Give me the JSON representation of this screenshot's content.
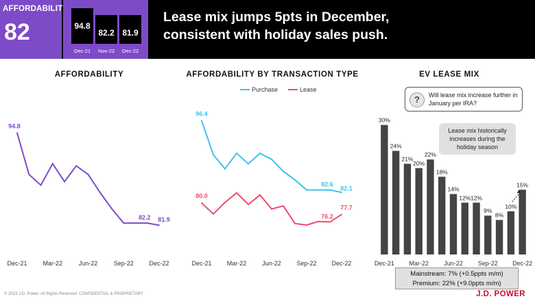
{
  "header": {
    "kpi_label": "AFFORDABILITY",
    "kpi_value": "82",
    "mini": [
      {
        "value": "94.8",
        "label": "Dec-21"
      },
      {
        "value": "82.2",
        "label": "Nov-22"
      },
      {
        "value": "81.9",
        "label": "Dec-22"
      }
    ],
    "headline_line1": "Lease mix jumps 5pts in December,",
    "headline_line2": "consistent with holiday sales push."
  },
  "colors": {
    "purple": "#7d4bc8",
    "purchase": "#3ec1ec",
    "lease": "#ef4b6c",
    "bar": "#444444",
    "brand_red": "#c8102e"
  },
  "chart_data": [
    {
      "type": "line",
      "title": "AFFORDABILITY",
      "x": [
        "Dec-21",
        "Jan-22",
        "Feb-22",
        "Mar-22",
        "Apr-22",
        "May-22",
        "Jun-22",
        "Jul-22",
        "Aug-22",
        "Sep-22",
        "Oct-22",
        "Nov-22",
        "Dec-22"
      ],
      "tick_labels": [
        "Dec-21",
        "Mar-22",
        "Jun-22",
        "Sep-22",
        "Dec-22"
      ],
      "series": [
        {
          "values": [
            94.8,
            89.0,
            87.5,
            90.5,
            88.0,
            90.2,
            89.0,
            86.5,
            84.2,
            82.2,
            82.2,
            82.2,
            81.9
          ]
        }
      ],
      "data_labels": [
        {
          "index": 0,
          "text": "94.8"
        },
        {
          "index": 11,
          "text": "82.2"
        },
        {
          "index": 12,
          "text": "81.9"
        }
      ],
      "ylim": [
        78,
        100
      ]
    },
    {
      "type": "line",
      "title": "AFFORDABILITY BY TRANSACTION TYPE",
      "legend_position": "top",
      "x": [
        "Dec-21",
        "Jan-22",
        "Feb-22",
        "Mar-22",
        "Apr-22",
        "May-22",
        "Jun-22",
        "Jul-22",
        "Aug-22",
        "Sep-22",
        "Oct-22",
        "Nov-22",
        "Dec-22"
      ],
      "tick_labels": [
        "Dec-21",
        "Mar-22",
        "Jun-22",
        "Sep-22",
        "Dec-22"
      ],
      "series": [
        {
          "name": "Purchase",
          "values": [
            96.4,
            89.6,
            86.8,
            89.9,
            87.8,
            89.9,
            88.7,
            86.3,
            84.6,
            82.6,
            82.6,
            82.6,
            82.1
          ]
        },
        {
          "name": "Lease",
          "values": [
            80.0,
            77.8,
            80.1,
            82.0,
            79.7,
            81.6,
            78.8,
            79.4,
            75.9,
            75.6,
            76.3,
            76.2,
            77.7
          ]
        }
      ],
      "data_labels": [
        {
          "series": 0,
          "index": 0,
          "text": "96.4"
        },
        {
          "series": 0,
          "index": 11,
          "text": "82.6"
        },
        {
          "series": 0,
          "index": 12,
          "text": "82.1"
        },
        {
          "series": 1,
          "index": 0,
          "text": "80.0"
        },
        {
          "series": 1,
          "index": 11,
          "text": "76.2"
        },
        {
          "series": 1,
          "index": 12,
          "text": "77.7"
        }
      ],
      "ylim": [
        70,
        100
      ]
    },
    {
      "type": "bar",
      "title": "EV LEASE MIX",
      "categories": [
        "Dec-21",
        "Jan-22",
        "Feb-22",
        "Mar-22",
        "Apr-22",
        "May-22",
        "Jun-22",
        "Jul-22",
        "Aug-22",
        "Sep-22",
        "Oct-22",
        "Nov-22",
        "Dec-22"
      ],
      "tick_labels": [
        "Dec-21",
        "Mar-22",
        "Jun-22",
        "Sep-22",
        "Dec-22"
      ],
      "values": [
        30,
        24,
        21,
        20,
        22,
        18,
        14,
        12,
        12,
        9,
        8,
        10,
        15
      ],
      "value_labels": [
        "30%",
        "24%",
        "21%",
        "20%",
        "22%",
        "18%",
        "14%",
        "12%",
        "12%",
        "9%",
        "8%",
        "10%",
        "15%"
      ],
      "ylim": [
        0,
        32
      ]
    }
  ],
  "callouts": {
    "question": "Will lease mix increase further in January per IRA?",
    "note": "Lease mix historically increases during the holiday season"
  },
  "summary": {
    "line1": "Mainstream: 7% (+0.5ppts m/m)",
    "line2": "Premium: 22% (+9.0ppts m/m)"
  },
  "footer": {
    "copyright": "© 2023 J.D. Power. All Rights Reserved. CONFIDENTIAL & PROPRIETARY",
    "brand": "J.D. POWER"
  }
}
